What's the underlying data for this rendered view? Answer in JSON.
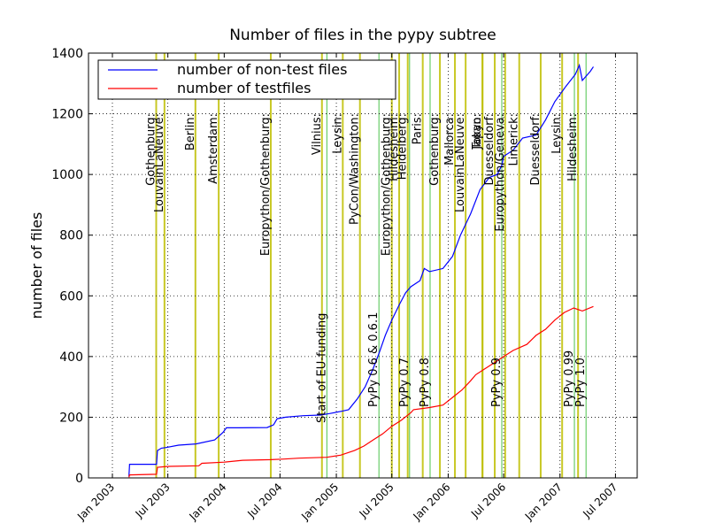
{
  "chart_data": {
    "type": "line",
    "title": "Number of files in the pypy subtree",
    "xlabel": "",
    "ylabel": "number of files",
    "ylim": [
      0,
      1400
    ],
    "yticks": [
      0,
      200,
      400,
      600,
      800,
      1000,
      1200,
      1400
    ],
    "xlim": [
      "2002-10-15",
      "2007-09-10"
    ],
    "xticks": [
      {
        "date": "2003-01-01",
        "label": "Jan 2003"
      },
      {
        "date": "2003-07-01",
        "label": "Jul 2003"
      },
      {
        "date": "2004-01-01",
        "label": "Jan 2004"
      },
      {
        "date": "2004-07-01",
        "label": "Jul 2004"
      },
      {
        "date": "2005-01-01",
        "label": "Jan 2005"
      },
      {
        "date": "2005-07-01",
        "label": "Jul 2005"
      },
      {
        "date": "2006-01-01",
        "label": "Jan 2006"
      },
      {
        "date": "2006-07-01",
        "label": "Jul 2006"
      },
      {
        "date": "2007-01-01",
        "label": "Jan 2007"
      },
      {
        "date": "2007-07-01",
        "label": "Jul 2007"
      }
    ],
    "grid": true,
    "legend": "top-left",
    "series": [
      {
        "name": "number of non-test files",
        "color": "#0000ff",
        "points": [
          [
            "2003-02-24",
            5
          ],
          [
            "2003-02-26",
            45
          ],
          [
            "2003-05-25",
            45
          ],
          [
            "2003-05-28",
            90
          ],
          [
            "2003-06-10",
            98
          ],
          [
            "2003-06-25",
            100
          ],
          [
            "2003-08-05",
            108
          ],
          [
            "2003-10-01",
            112
          ],
          [
            "2003-12-01",
            125
          ],
          [
            "2003-12-28",
            150
          ],
          [
            "2004-01-08",
            165
          ],
          [
            "2004-02-15",
            165
          ],
          [
            "2004-05-20",
            166
          ],
          [
            "2004-06-10",
            175
          ],
          [
            "2004-06-22",
            195
          ],
          [
            "2004-07-20",
            200
          ],
          [
            "2004-09-15",
            205
          ],
          [
            "2004-11-10",
            207
          ],
          [
            "2004-12-10",
            212
          ],
          [
            "2005-01-20",
            220
          ],
          [
            "2005-02-10",
            225
          ],
          [
            "2005-03-10",
            260
          ],
          [
            "2005-04-05",
            300
          ],
          [
            "2005-05-01",
            360
          ],
          [
            "2005-05-20",
            410
          ],
          [
            "2005-06-10",
            470
          ],
          [
            "2005-07-01",
            520
          ],
          [
            "2005-07-25",
            570
          ],
          [
            "2005-08-15",
            610
          ],
          [
            "2005-09-01",
            630
          ],
          [
            "2005-10-01",
            650
          ],
          [
            "2005-10-15",
            690
          ],
          [
            "2005-11-01",
            680
          ],
          [
            "2005-12-15",
            690
          ],
          [
            "2006-01-15",
            730
          ],
          [
            "2006-02-10",
            800
          ],
          [
            "2006-03-15",
            870
          ],
          [
            "2006-04-15",
            950
          ],
          [
            "2006-05-15",
            990
          ],
          [
            "2006-06-10",
            1000
          ],
          [
            "2006-06-25",
            1030
          ],
          [
            "2006-07-01",
            1060
          ],
          [
            "2006-08-01",
            1080
          ],
          [
            "2006-09-01",
            1120
          ],
          [
            "2006-10-15",
            1130
          ],
          [
            "2006-11-15",
            1180
          ],
          [
            "2006-12-15",
            1240
          ],
          [
            "2007-01-20",
            1290
          ],
          [
            "2007-02-20",
            1330
          ],
          [
            "2007-03-05",
            1360
          ],
          [
            "2007-03-15",
            1310
          ],
          [
            "2007-04-10",
            1340
          ],
          [
            "2007-04-20",
            1355
          ]
        ]
      },
      {
        "name": "number of testfiles",
        "color": "#ff0000",
        "points": [
          [
            "2003-02-24",
            2
          ],
          [
            "2003-02-26",
            10
          ],
          [
            "2003-05-25",
            12
          ],
          [
            "2003-05-28",
            35
          ],
          [
            "2003-07-01",
            38
          ],
          [
            "2003-10-10",
            40
          ],
          [
            "2003-10-20",
            48
          ],
          [
            "2004-01-01",
            52
          ],
          [
            "2004-03-01",
            58
          ],
          [
            "2004-06-01",
            60
          ],
          [
            "2004-07-15",
            62
          ],
          [
            "2004-09-01",
            65
          ],
          [
            "2004-12-01",
            68
          ],
          [
            "2005-01-15",
            75
          ],
          [
            "2005-03-01",
            90
          ],
          [
            "2005-04-01",
            105
          ],
          [
            "2005-05-01",
            125
          ],
          [
            "2005-06-01",
            145
          ],
          [
            "2005-07-01",
            170
          ],
          [
            "2005-08-01",
            190
          ],
          [
            "2005-09-01",
            215
          ],
          [
            "2005-09-10",
            225
          ],
          [
            "2005-11-01",
            232
          ],
          [
            "2005-12-15",
            240
          ],
          [
            "2006-01-15",
            265
          ],
          [
            "2006-02-15",
            290
          ],
          [
            "2006-03-15",
            320
          ],
          [
            "2006-04-01",
            340
          ],
          [
            "2006-05-01",
            360
          ],
          [
            "2006-06-01",
            380
          ],
          [
            "2006-07-01",
            400
          ],
          [
            "2006-08-01",
            420
          ],
          [
            "2006-09-15",
            440
          ],
          [
            "2006-10-15",
            470
          ],
          [
            "2006-11-15",
            490
          ],
          [
            "2006-12-15",
            520
          ],
          [
            "2007-01-15",
            545
          ],
          [
            "2007-02-15",
            560
          ],
          [
            "2007-03-15",
            550
          ],
          [
            "2007-04-20",
            565
          ]
        ]
      }
    ],
    "events": [
      {
        "label": "Gothenburg",
        "date": "2003-05-24"
      },
      {
        "label": "LouvainLaNeuve",
        "date": "2003-06-20"
      },
      {
        "label": "Berlin",
        "date": "2003-09-29"
      },
      {
        "label": "Amsterdam",
        "date": "2003-12-14"
      },
      {
        "label": "Europython/Gothenburg",
        "date": "2004-06-01"
      },
      {
        "label": "Vilnius",
        "date": "2004-11-15"
      },
      {
        "label": "Leysin",
        "date": "2005-01-22"
      },
      {
        "label": "PyCon/Washington",
        "date": "2005-03-19"
      },
      {
        "label": "Europython/Gothenburg",
        "date": "2005-07-01"
      },
      {
        "label": "Hildesheim",
        "date": "2005-07-25"
      },
      {
        "label": "Heidelberg",
        "date": "2005-08-22"
      },
      {
        "label": "Paris",
        "date": "2005-10-10"
      },
      {
        "label": "Gothenburg",
        "date": "2005-12-05"
      },
      {
        "label": "Mallorca",
        "date": "2006-01-23"
      },
      {
        "label": "LouvainLaNeuve",
        "date": "2006-02-27"
      },
      {
        "label": "Tokyo",
        "date": "2006-04-23"
      },
      {
        "label": "Japan",
        "date": "2006-04-23"
      },
      {
        "label": "Duesseldorf",
        "date": "2006-06-02"
      },
      {
        "label": "Europython/Geneva",
        "date": "2006-07-06"
      },
      {
        "label": "Limerick",
        "date": "2006-08-21"
      },
      {
        "label": "Duesseldorf",
        "date": "2006-10-30"
      },
      {
        "label": "Leysin",
        "date": "2007-01-08"
      },
      {
        "label": "Hildesheim",
        "date": "2007-03-01"
      }
    ],
    "releases": [
      {
        "label": "Start of EU-funding",
        "date": "2004-12-01"
      },
      {
        "label": "PyPy 0.6 & 0.6.1",
        "date": "2005-05-20"
      },
      {
        "label": "PyPy 0.7",
        "date": "2005-08-28"
      },
      {
        "label": "PyPy 0.8",
        "date": "2005-11-03"
      },
      {
        "label": "PyPy 0.9",
        "date": "2006-06-25"
      },
      {
        "label": "PyPy 0.99",
        "date": "2007-02-17"
      },
      {
        "label": "PyPy 1.0",
        "date": "2007-03-27"
      }
    ]
  }
}
